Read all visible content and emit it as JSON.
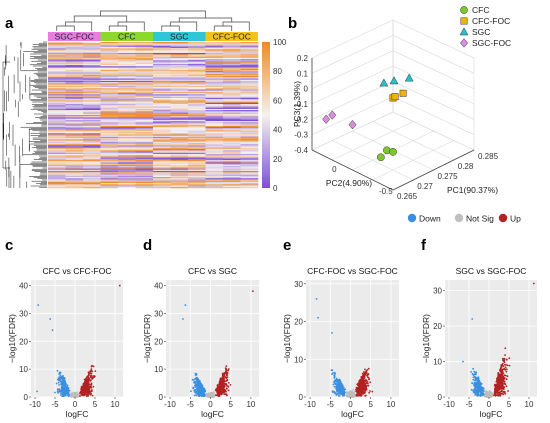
{
  "panels": {
    "a": "a",
    "b": "b",
    "c": "c",
    "d": "d",
    "e": "e",
    "f": "f"
  },
  "chart_data": [
    {
      "panel": "a",
      "type": "heatmap",
      "column_groups": [
        {
          "label": "SGC-FOC",
          "color": "#e87ce1",
          "count": 3
        },
        {
          "label": "CFC",
          "color": "#8ed72c",
          "count": 3
        },
        {
          "label": "SGC",
          "color": "#2fc6d6",
          "count": 3
        },
        {
          "label": "CFC-FOC",
          "color": "#f5c21b",
          "count": 3
        }
      ],
      "colorbar": {
        "ticks": [
          0,
          20,
          40,
          60,
          80,
          100
        ],
        "low_color": "#7d4fd6",
        "mid_color": "#f5f1ee",
        "high_color": "#f08a25"
      }
    },
    {
      "panel": "b",
      "type": "scatter",
      "xlabel": "PC1(90.37%)",
      "ylabel": "PC3(1.39%)",
      "zlabel": "PC2(4.90%)",
      "x_ticks": [
        "0.265",
        "0.27",
        "0.275",
        "0.28",
        "0.285"
      ],
      "y_ticks": [
        "-0.4",
        "-0.3",
        "-0.2",
        "-0.1",
        "0",
        "0.1",
        "0.2"
      ],
      "z_ticks": [
        "-0.5",
        "0"
      ],
      "legend_position": "top-right",
      "series": [
        {
          "name": "CFC",
          "color": "#7dc72e",
          "marker": "circle",
          "points": [
            [
              0.271,
              -0.25,
              -0.2
            ],
            [
              0.272,
              -0.28,
              -0.22
            ],
            [
              0.27,
              -0.32,
              -0.18
            ]
          ]
        },
        {
          "name": "CFC-FOC",
          "color": "#f0b400",
          "marker": "square",
          "points": [
            [
              0.28,
              -0.02,
              0.1
            ],
            [
              0.281,
              -0.04,
              0.12
            ],
            [
              0.282,
              0.0,
              0.08
            ]
          ]
        },
        {
          "name": "SGC",
          "color": "#2bbfd0",
          "marker": "triangle",
          "points": [
            [
              0.279,
              0.15,
              0.15
            ],
            [
              0.281,
              0.14,
              0.13
            ],
            [
              0.284,
              0.12,
              0.1
            ]
          ]
        },
        {
          "name": "SGC-FOC",
          "color": "#d98ee0",
          "marker": "diamond",
          "points": [
            [
              0.266,
              0.0,
              0.2
            ],
            [
              0.268,
              -0.01,
              0.22
            ],
            [
              0.27,
              -0.1,
              0.1
            ]
          ]
        }
      ]
    },
    {
      "type": "scatter",
      "legend": {
        "items": [
          {
            "name": "Down",
            "color": "#3a8fe0"
          },
          {
            "name": "Not Sig",
            "color": "#c0c0c0"
          },
          {
            "name": "Up",
            "color": "#b22222"
          }
        ],
        "position": "top-right"
      }
    },
    {
      "panel": "c",
      "type": "scatter",
      "title": "CFC vs CFC-FOC",
      "xlabel": "logFC",
      "ylabel": "−log10(FDR)",
      "x_ticks": [
        -10,
        -5,
        0,
        5,
        10
      ],
      "y_ticks": [
        0,
        10,
        20,
        30,
        40
      ],
      "xlim": [
        -11,
        12
      ],
      "ylim": [
        0,
        42
      ],
      "highlights": [
        [
          -9.2,
          33
        ],
        [
          11.2,
          40
        ],
        [
          -9.5,
          2
        ],
        [
          -6.2,
          28
        ],
        [
          -5.6,
          24
        ]
      ],
      "spread": {
        "down": [
          -6,
          18
        ],
        "up": [
          7,
          22
        ]
      }
    },
    {
      "panel": "d",
      "type": "scatter",
      "title": "CFC vs SGC",
      "xlabel": "logFC",
      "ylabel": "−log10(FDR)",
      "x_ticks": [
        -10,
        -5,
        0,
        5,
        10
      ],
      "y_ticks": [
        0,
        10,
        20,
        30,
        40
      ],
      "xlim": [
        -11,
        12
      ],
      "ylim": [
        0,
        42
      ],
      "highlights": [
        [
          -6.2,
          33
        ],
        [
          10.5,
          38
        ],
        [
          -6.8,
          28
        ]
      ],
      "spread": {
        "down": [
          -6,
          16
        ],
        "up": [
          6,
          20
        ]
      }
    },
    {
      "panel": "e",
      "type": "scatter",
      "title": "CFC-FOC vs SGC-FOC",
      "xlabel": "logFC",
      "ylabel": "−log10(FDR)",
      "x_ticks": [
        -10,
        -5,
        0,
        5,
        10
      ],
      "y_ticks": [
        0,
        10,
        20,
        30
      ],
      "xlim": [
        -11,
        12
      ],
      "ylim": [
        0,
        31
      ],
      "highlights": [
        [
          -8.4,
          26
        ],
        [
          -8,
          21
        ],
        [
          -4.6,
          17
        ]
      ],
      "spread": {
        "down": [
          -7,
          12
        ],
        "up": [
          5,
          11
        ]
      }
    },
    {
      "panel": "f",
      "type": "scatter",
      "title": "SGC vs SGC-FOC",
      "xlabel": "logFC",
      "ylabel": "−log10(FDR)",
      "x_ticks": [
        -10,
        -5,
        0,
        5,
        10
      ],
      "y_ticks": [
        0,
        10,
        20,
        30
      ],
      "xlim": [
        -11,
        12
      ],
      "ylim": [
        0,
        33
      ],
      "highlights": [
        [
          -4.2,
          22
        ],
        [
          11.2,
          32
        ],
        [
          -6.5,
          10
        ]
      ],
      "spread": {
        "down": [
          -6,
          14
        ],
        "up": [
          8,
          31
        ]
      }
    }
  ]
}
